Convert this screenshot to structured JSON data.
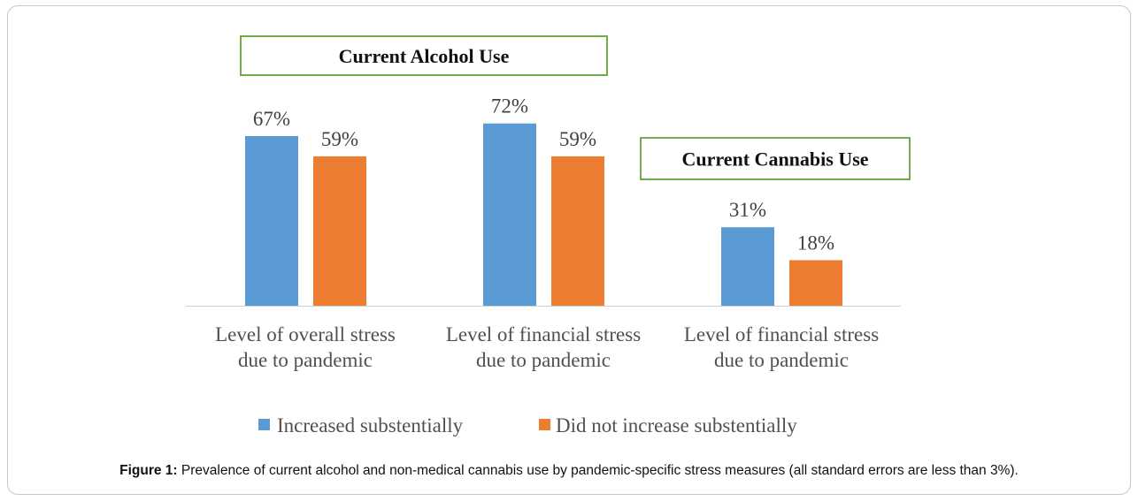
{
  "chart_data": {
    "type": "bar",
    "categories": [
      [
        "Level of overall stress",
        "due to pandemic"
      ],
      [
        "Level of financial stress",
        "due to pandemic"
      ],
      [
        "Level of financial stress",
        "due to pandemic"
      ]
    ],
    "series": [
      {
        "name": "Increased substentially",
        "color": "#5b9bd5",
        "values": [
          67,
          72,
          31
        ],
        "labels": [
          "67%",
          "72%",
          "31%"
        ]
      },
      {
        "name": "Did not increase substentially",
        "color": "#ed7d31",
        "values": [
          59,
          59,
          18
        ],
        "labels": [
          "59%",
          "59%",
          "18%"
        ]
      }
    ],
    "boxes": [
      {
        "text": "Current Alcohol Use"
      },
      {
        "text": "Current Cannabis Use"
      }
    ],
    "ylim": [
      0,
      100
    ],
    "grid": false,
    "legend_position": "bottom"
  },
  "caption": {
    "label": "Figure 1:",
    "text": " Prevalence of current alcohol and non-medical cannabis use by pandemic-specific stress measures (all standard errors are less than 3%)."
  },
  "colors": {
    "box_border": "#70ad47",
    "axis": "#d0d0d0"
  }
}
